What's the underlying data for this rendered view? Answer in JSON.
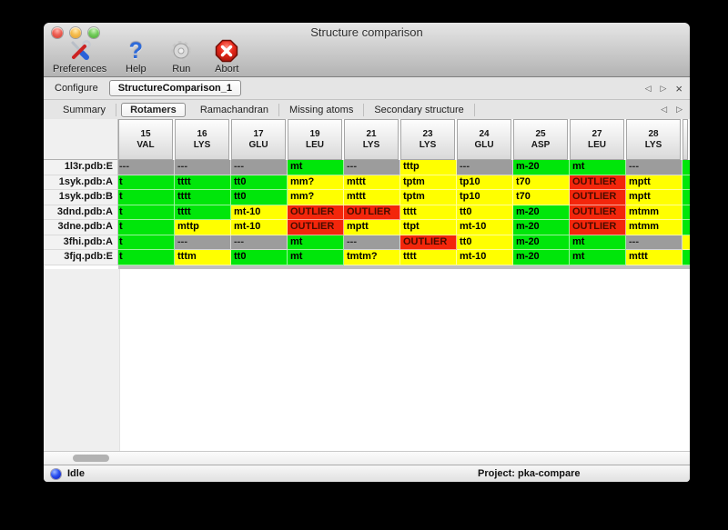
{
  "window": {
    "title": "Structure comparison"
  },
  "toolbar": {
    "items": [
      {
        "label": "Preferences",
        "icon": "tools-icon"
      },
      {
        "label": "Help",
        "icon": "help-icon",
        "glyph": "?"
      },
      {
        "label": "Run",
        "icon": "gear-icon"
      },
      {
        "label": "Abort",
        "icon": "abort-icon"
      }
    ]
  },
  "configure": {
    "label": "Configure",
    "selected_config": "StructureComparison_1",
    "nav": {
      "prev": "◁",
      "next": "▷",
      "close": "×"
    }
  },
  "tabs": {
    "items": [
      {
        "label": "Summary",
        "selected": false
      },
      {
        "label": "Rotamers",
        "selected": true
      },
      {
        "label": "Ramachandran",
        "selected": false
      },
      {
        "label": "Missing atoms",
        "selected": false
      },
      {
        "label": "Secondary structure",
        "selected": false
      }
    ],
    "nav": {
      "prev": "◁",
      "next": "▷"
    }
  },
  "colors": {
    "ok_green": "#00e60a",
    "warn_yellow": "#ffff00",
    "outlier_red": "#f3260b",
    "missing_gray": "#9c9c9c"
  },
  "table": {
    "columns": [
      {
        "num": "15",
        "res": "VAL"
      },
      {
        "num": "16",
        "res": "LYS"
      },
      {
        "num": "17",
        "res": "GLU"
      },
      {
        "num": "19",
        "res": "LEU"
      },
      {
        "num": "21",
        "res": "LYS"
      },
      {
        "num": "23",
        "res": "LYS"
      },
      {
        "num": "24",
        "res": "GLU"
      },
      {
        "num": "25",
        "res": "ASP"
      },
      {
        "num": "27",
        "res": "LEU"
      },
      {
        "num": "28",
        "res": "LYS"
      }
    ],
    "rows": [
      {
        "label": "1l3r.pdb:E",
        "cells": [
          {
            "t": "---",
            "s": "missing"
          },
          {
            "t": "---",
            "s": "missing"
          },
          {
            "t": "---",
            "s": "missing"
          },
          {
            "t": "mt",
            "s": "ok"
          },
          {
            "t": "---",
            "s": "missing"
          },
          {
            "t": "tttp",
            "s": "warn"
          },
          {
            "t": "---",
            "s": "missing"
          },
          {
            "t": "m-20",
            "s": "ok"
          },
          {
            "t": "mt",
            "s": "ok"
          },
          {
            "t": "---",
            "s": "missing"
          }
        ]
      },
      {
        "label": "1syk.pdb:A",
        "cells": [
          {
            "t": "t",
            "s": "ok"
          },
          {
            "t": "tttt",
            "s": "ok"
          },
          {
            "t": "tt0",
            "s": "ok"
          },
          {
            "t": "mm?",
            "s": "warn"
          },
          {
            "t": "mttt",
            "s": "warn"
          },
          {
            "t": "tptm",
            "s": "warn"
          },
          {
            "t": "tp10",
            "s": "warn"
          },
          {
            "t": "t70",
            "s": "warn"
          },
          {
            "t": "OUTLIER",
            "s": "outlier"
          },
          {
            "t": "mptt",
            "s": "warn"
          }
        ]
      },
      {
        "label": "1syk.pdb:B",
        "cells": [
          {
            "t": "t",
            "s": "ok"
          },
          {
            "t": "tttt",
            "s": "ok"
          },
          {
            "t": "tt0",
            "s": "ok"
          },
          {
            "t": "mm?",
            "s": "warn"
          },
          {
            "t": "mttt",
            "s": "warn"
          },
          {
            "t": "tptm",
            "s": "warn"
          },
          {
            "t": "tp10",
            "s": "warn"
          },
          {
            "t": "t70",
            "s": "warn"
          },
          {
            "t": "OUTLIER",
            "s": "outlier"
          },
          {
            "t": "mptt",
            "s": "warn"
          }
        ]
      },
      {
        "label": "3dnd.pdb:A",
        "cells": [
          {
            "t": "t",
            "s": "ok"
          },
          {
            "t": "tttt",
            "s": "ok"
          },
          {
            "t": "mt-10",
            "s": "warn"
          },
          {
            "t": "OUTLIER",
            "s": "outlier"
          },
          {
            "t": "OUTLIER",
            "s": "outlier"
          },
          {
            "t": "tttt",
            "s": "warn"
          },
          {
            "t": "tt0",
            "s": "warn"
          },
          {
            "t": "m-20",
            "s": "ok"
          },
          {
            "t": "OUTLIER",
            "s": "outlier"
          },
          {
            "t": "mtmm",
            "s": "warn"
          }
        ]
      },
      {
        "label": "3dne.pdb:A",
        "cells": [
          {
            "t": "t",
            "s": "ok"
          },
          {
            "t": "mttp",
            "s": "warn"
          },
          {
            "t": "mt-10",
            "s": "warn"
          },
          {
            "t": "OUTLIER",
            "s": "outlier"
          },
          {
            "t": "mptt",
            "s": "warn"
          },
          {
            "t": "ttpt",
            "s": "warn"
          },
          {
            "t": "mt-10",
            "s": "warn"
          },
          {
            "t": "m-20",
            "s": "ok"
          },
          {
            "t": "OUTLIER",
            "s": "outlier"
          },
          {
            "t": "mtmm",
            "s": "warn"
          }
        ]
      },
      {
        "label": "3fhi.pdb:A",
        "cells": [
          {
            "t": "t",
            "s": "ok"
          },
          {
            "t": "---",
            "s": "missing"
          },
          {
            "t": "---",
            "s": "missing"
          },
          {
            "t": "mt",
            "s": "ok"
          },
          {
            "t": "---",
            "s": "missing"
          },
          {
            "t": "OUTLIER",
            "s": "outlier"
          },
          {
            "t": "tt0",
            "s": "warn"
          },
          {
            "t": "m-20",
            "s": "ok"
          },
          {
            "t": "mt",
            "s": "ok"
          },
          {
            "t": "---",
            "s": "missing"
          }
        ]
      },
      {
        "label": "3fjq.pdb:E",
        "cells": [
          {
            "t": "t",
            "s": "ok"
          },
          {
            "t": "tttm",
            "s": "warn"
          },
          {
            "t": "tt0",
            "s": "ok"
          },
          {
            "t": "mt",
            "s": "ok"
          },
          {
            "t": "tmtm?",
            "s": "warn"
          },
          {
            "t": "tttt",
            "s": "warn"
          },
          {
            "t": "mt-10",
            "s": "warn"
          },
          {
            "t": "m-20",
            "s": "ok"
          },
          {
            "t": "mt",
            "s": "ok"
          },
          {
            "t": "mttt",
            "s": "warn"
          }
        ]
      }
    ],
    "partial_column": {
      "cells": [
        "ok",
        "ok",
        "ok",
        "ok",
        "ok",
        "warn",
        "ok"
      ]
    }
  },
  "statusbar": {
    "state": "Idle",
    "project": "Project: pka-compare"
  }
}
